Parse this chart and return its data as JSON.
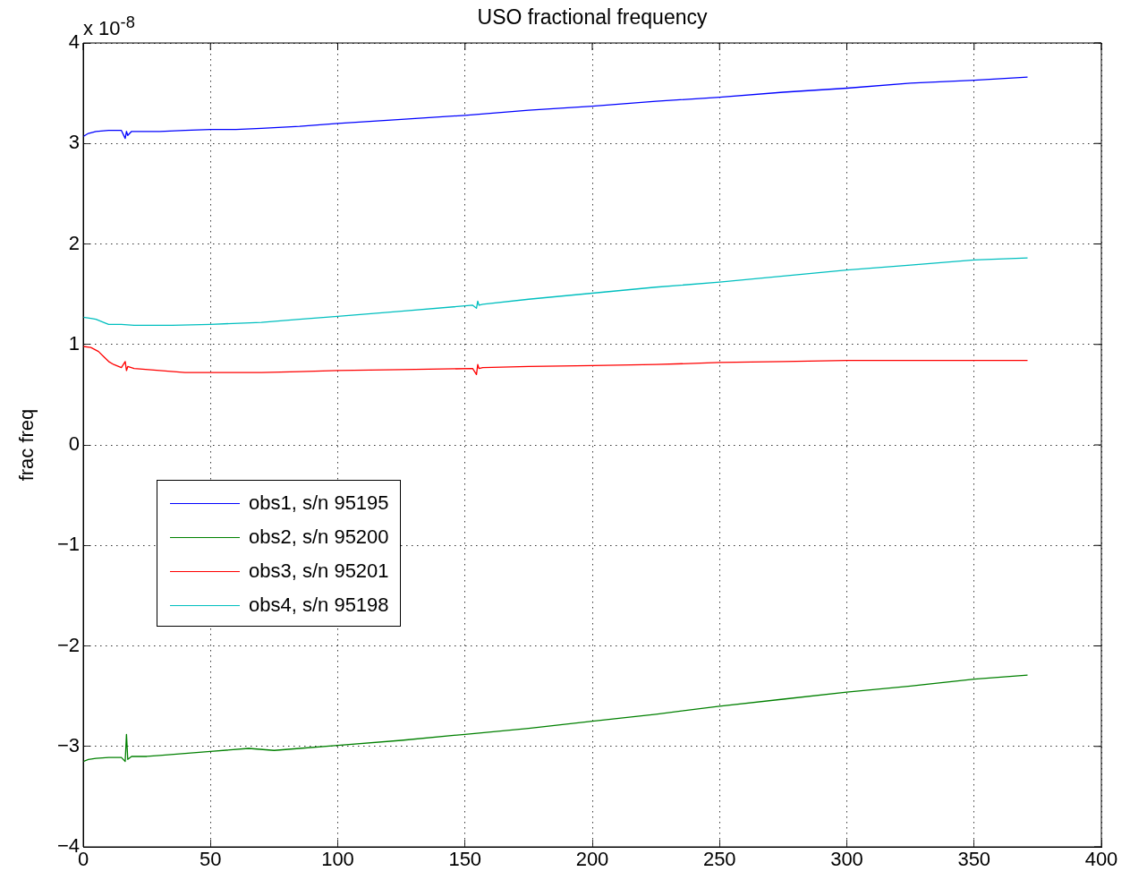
{
  "chart_data": {
    "type": "line",
    "title": "USO fractional frequency",
    "ylabel": "frac freq",
    "annotations": [
      "x 10$^{-8}$"
    ],
    "xlim": [
      0,
      400
    ],
    "xticks": [
      0,
      50,
      100,
      150,
      200,
      250,
      300,
      350,
      400
    ],
    "ylim": [
      -4,
      4
    ],
    "yticks": [
      {
        "value": -4,
        "label": "−4"
      },
      {
        "value": -3,
        "label": "−3"
      },
      {
        "value": -2,
        "label": "−2"
      },
      {
        "value": -1,
        "label": "−1"
      },
      0,
      1,
      2,
      3,
      4
    ],
    "grid": true,
    "legend": "center left",
    "marker": "none",
    "line_style": "solid",
    "series": [
      {
        "name": "obs1, s/n 95195",
        "color": "#0000ff",
        "x": [
          0,
          2,
          5,
          10,
          15,
          16.5,
          17,
          17.5,
          19,
          25,
          30,
          40,
          50,
          60,
          70,
          85,
          100,
          125,
          150,
          175,
          200,
          225,
          250,
          275,
          300,
          325,
          350,
          371
        ],
        "values": [
          3.07,
          3.1,
          3.12,
          3.13,
          3.13,
          3.05,
          3.12,
          3.08,
          3.12,
          3.12,
          3.12,
          3.13,
          3.14,
          3.14,
          3.15,
          3.17,
          3.2,
          3.24,
          3.28,
          3.33,
          3.37,
          3.42,
          3.46,
          3.51,
          3.55,
          3.6,
          3.63,
          3.66
        ]
      },
      {
        "name": "obs2, s/n 95200",
        "color": "#008000",
        "x": [
          0,
          2,
          5,
          10,
          15,
          16.5,
          17,
          17.5,
          19,
          25,
          30,
          40,
          50,
          65,
          75,
          85,
          100,
          125,
          150,
          175,
          200,
          225,
          250,
          275,
          300,
          325,
          350,
          371
        ],
        "values": [
          -3.15,
          -3.13,
          -3.12,
          -3.11,
          -3.11,
          -3.15,
          -2.88,
          -3.13,
          -3.1,
          -3.1,
          -3.09,
          -3.07,
          -3.05,
          -3.02,
          -3.04,
          -3.02,
          -2.99,
          -2.94,
          -2.88,
          -2.82,
          -2.75,
          -2.68,
          -2.6,
          -2.53,
          -2.46,
          -2.4,
          -2.33,
          -2.29
        ]
      },
      {
        "name": "obs3, s/n 95201",
        "color": "#ff0000",
        "x": [
          0,
          3,
          6,
          8,
          10,
          12,
          15,
          16.5,
          17,
          17.5,
          20,
          30,
          40,
          55,
          70,
          85,
          100,
          125,
          153,
          154.5,
          155,
          155.5,
          157,
          175,
          200,
          225,
          250,
          275,
          300,
          325,
          350,
          371
        ],
        "values": [
          0.98,
          0.97,
          0.93,
          0.88,
          0.83,
          0.8,
          0.77,
          0.83,
          0.74,
          0.78,
          0.76,
          0.74,
          0.72,
          0.72,
          0.72,
          0.73,
          0.74,
          0.75,
          0.76,
          0.7,
          0.8,
          0.76,
          0.77,
          0.78,
          0.79,
          0.8,
          0.82,
          0.83,
          0.84,
          0.84,
          0.84,
          0.84
        ]
      },
      {
        "name": "obs4, s/n 95198",
        "color": "#00bfbf",
        "x": [
          0,
          3,
          5,
          8,
          10,
          15,
          20,
          35,
          50,
          70,
          85,
          100,
          125,
          153,
          154.5,
          155,
          155.5,
          157,
          175,
          200,
          225,
          250,
          275,
          300,
          325,
          350,
          371
        ],
        "values": [
          1.27,
          1.26,
          1.25,
          1.22,
          1.2,
          1.2,
          1.19,
          1.19,
          1.2,
          1.22,
          1.25,
          1.28,
          1.33,
          1.39,
          1.36,
          1.43,
          1.39,
          1.4,
          1.45,
          1.51,
          1.57,
          1.62,
          1.68,
          1.74,
          1.79,
          1.84,
          1.86
        ]
      }
    ]
  }
}
